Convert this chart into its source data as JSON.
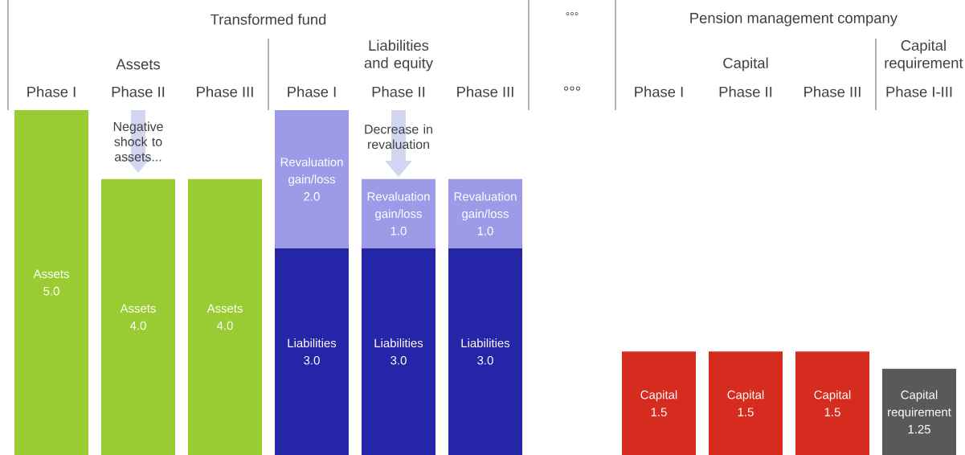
{
  "chart_data": {
    "type": "bar",
    "stacked": true,
    "categories": [
      "Phase I",
      "Phase II",
      "Phase III",
      "Phase I",
      "Phase II",
      "Phase III",
      "°°°",
      "Phase I",
      "Phase II",
      "Phase III",
      "Phase I-III"
    ],
    "ylim": [
      0,
      5
    ],
    "series": [
      {
        "name": "Assets",
        "color": "#99cc33",
        "values": [
          5.0,
          4.0,
          4.0,
          null,
          null,
          null,
          null,
          null,
          null,
          null,
          null
        ],
        "value_labels": [
          "5.0",
          "4.0",
          "4.0",
          null,
          null,
          null,
          null,
          null,
          null,
          null,
          null
        ]
      },
      {
        "name": "Liabilities",
        "color": "#2525a8",
        "values": [
          null,
          null,
          null,
          3.0,
          3.0,
          3.0,
          null,
          null,
          null,
          null,
          null
        ],
        "value_labels": [
          null,
          null,
          null,
          "3.0",
          "3.0",
          "3.0",
          null,
          null,
          null,
          null,
          null
        ]
      },
      {
        "name": "Revaluation gain/loss",
        "color": "#9b9be8",
        "values": [
          null,
          null,
          null,
          2.0,
          1.0,
          1.0,
          null,
          null,
          null,
          null,
          null
        ],
        "value_labels": [
          null,
          null,
          null,
          "2.0",
          "1.0",
          "1.0",
          null,
          null,
          null,
          null,
          null
        ]
      },
      {
        "name": "Capital",
        "color": "#d62b1f",
        "values": [
          null,
          null,
          null,
          null,
          null,
          null,
          null,
          1.5,
          1.5,
          1.5,
          null
        ],
        "value_labels": [
          null,
          null,
          null,
          null,
          null,
          null,
          null,
          "1.5",
          "1.5",
          "1.5",
          null
        ]
      },
      {
        "name": "Capital requirement",
        "color": "#595959",
        "values": [
          null,
          null,
          null,
          null,
          null,
          null,
          null,
          null,
          null,
          null,
          1.25
        ],
        "value_labels": [
          null,
          null,
          null,
          null,
          null,
          null,
          null,
          null,
          null,
          null,
          "1.25"
        ]
      }
    ],
    "annotations": [
      "Transformed fund",
      "°°°",
      "Pension management company",
      "Assets",
      "Liabilities and equity",
      "Capital",
      "Capital requirement",
      "Negative shock to assets...",
      "Decrease in revaluation"
    ]
  }
}
